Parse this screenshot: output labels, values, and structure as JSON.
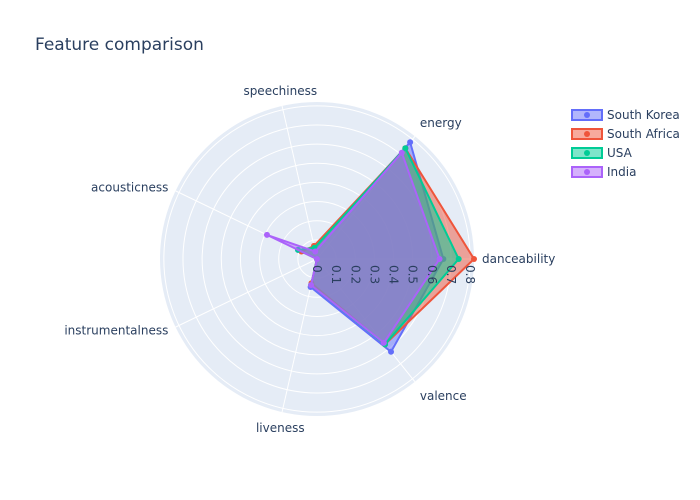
{
  "chart_data": {
    "type": "radar",
    "title": "Feature comparison",
    "axes": [
      "danceability",
      "energy",
      "speechiness",
      "acousticness",
      "instrumentalness",
      "liveness",
      "valence"
    ],
    "radial_range": [
      0,
      0.82
    ],
    "radial_ticks": [
      "0",
      "0.1",
      "0.2",
      "0.3",
      "0.4",
      "0.5",
      "0.6",
      "0.7",
      "0.8"
    ],
    "grid": true,
    "legend_position": "top-right",
    "series": [
      {
        "name": "South Korea",
        "color": "#636efa",
        "values": [
          0.66,
          0.78,
          0.06,
          0.11,
          0.0,
          0.15,
          0.62
        ]
      },
      {
        "name": "South Africa",
        "color": "#ef553b",
        "values": [
          0.82,
          0.74,
          0.07,
          0.09,
          0.0,
          0.13,
          0.57
        ]
      },
      {
        "name": "USA",
        "color": "#00cc96",
        "values": [
          0.74,
          0.74,
          0.06,
          0.11,
          0.0,
          0.14,
          0.57
        ]
      },
      {
        "name": "India",
        "color": "#ab63fa",
        "values": [
          0.64,
          0.71,
          0.04,
          0.29,
          0.0,
          0.14,
          0.56
        ]
      }
    ]
  }
}
